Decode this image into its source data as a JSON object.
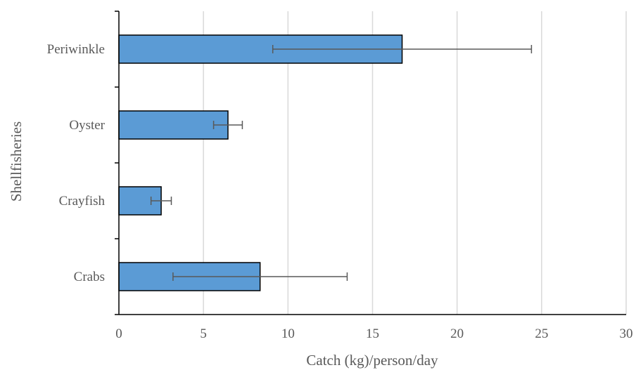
{
  "chart_data": {
    "type": "bar",
    "orientation": "horizontal",
    "categories": [
      "Periwinkle",
      "Oyster",
      "Crayfish",
      "Crabs"
    ],
    "values": [
      16.75,
      6.45,
      2.5,
      8.35
    ],
    "errors": [
      [
        9.1,
        24.4
      ],
      [
        5.6,
        7.3
      ],
      [
        1.9,
        3.1
      ],
      [
        3.2,
        13.5
      ]
    ],
    "xlabel": "Catch (kg)/person/day",
    "ylabel": "Shellfisheries",
    "xlim": [
      0,
      30
    ],
    "xticks": [
      0,
      5,
      10,
      15,
      20,
      25,
      30
    ],
    "grid": "vertical",
    "colors": {
      "bar_fill": "#5b9bd5",
      "bar_stroke": "#000000",
      "error_bar": "#595959",
      "grid": "#d9d9d9",
      "axis": "#000000"
    }
  }
}
